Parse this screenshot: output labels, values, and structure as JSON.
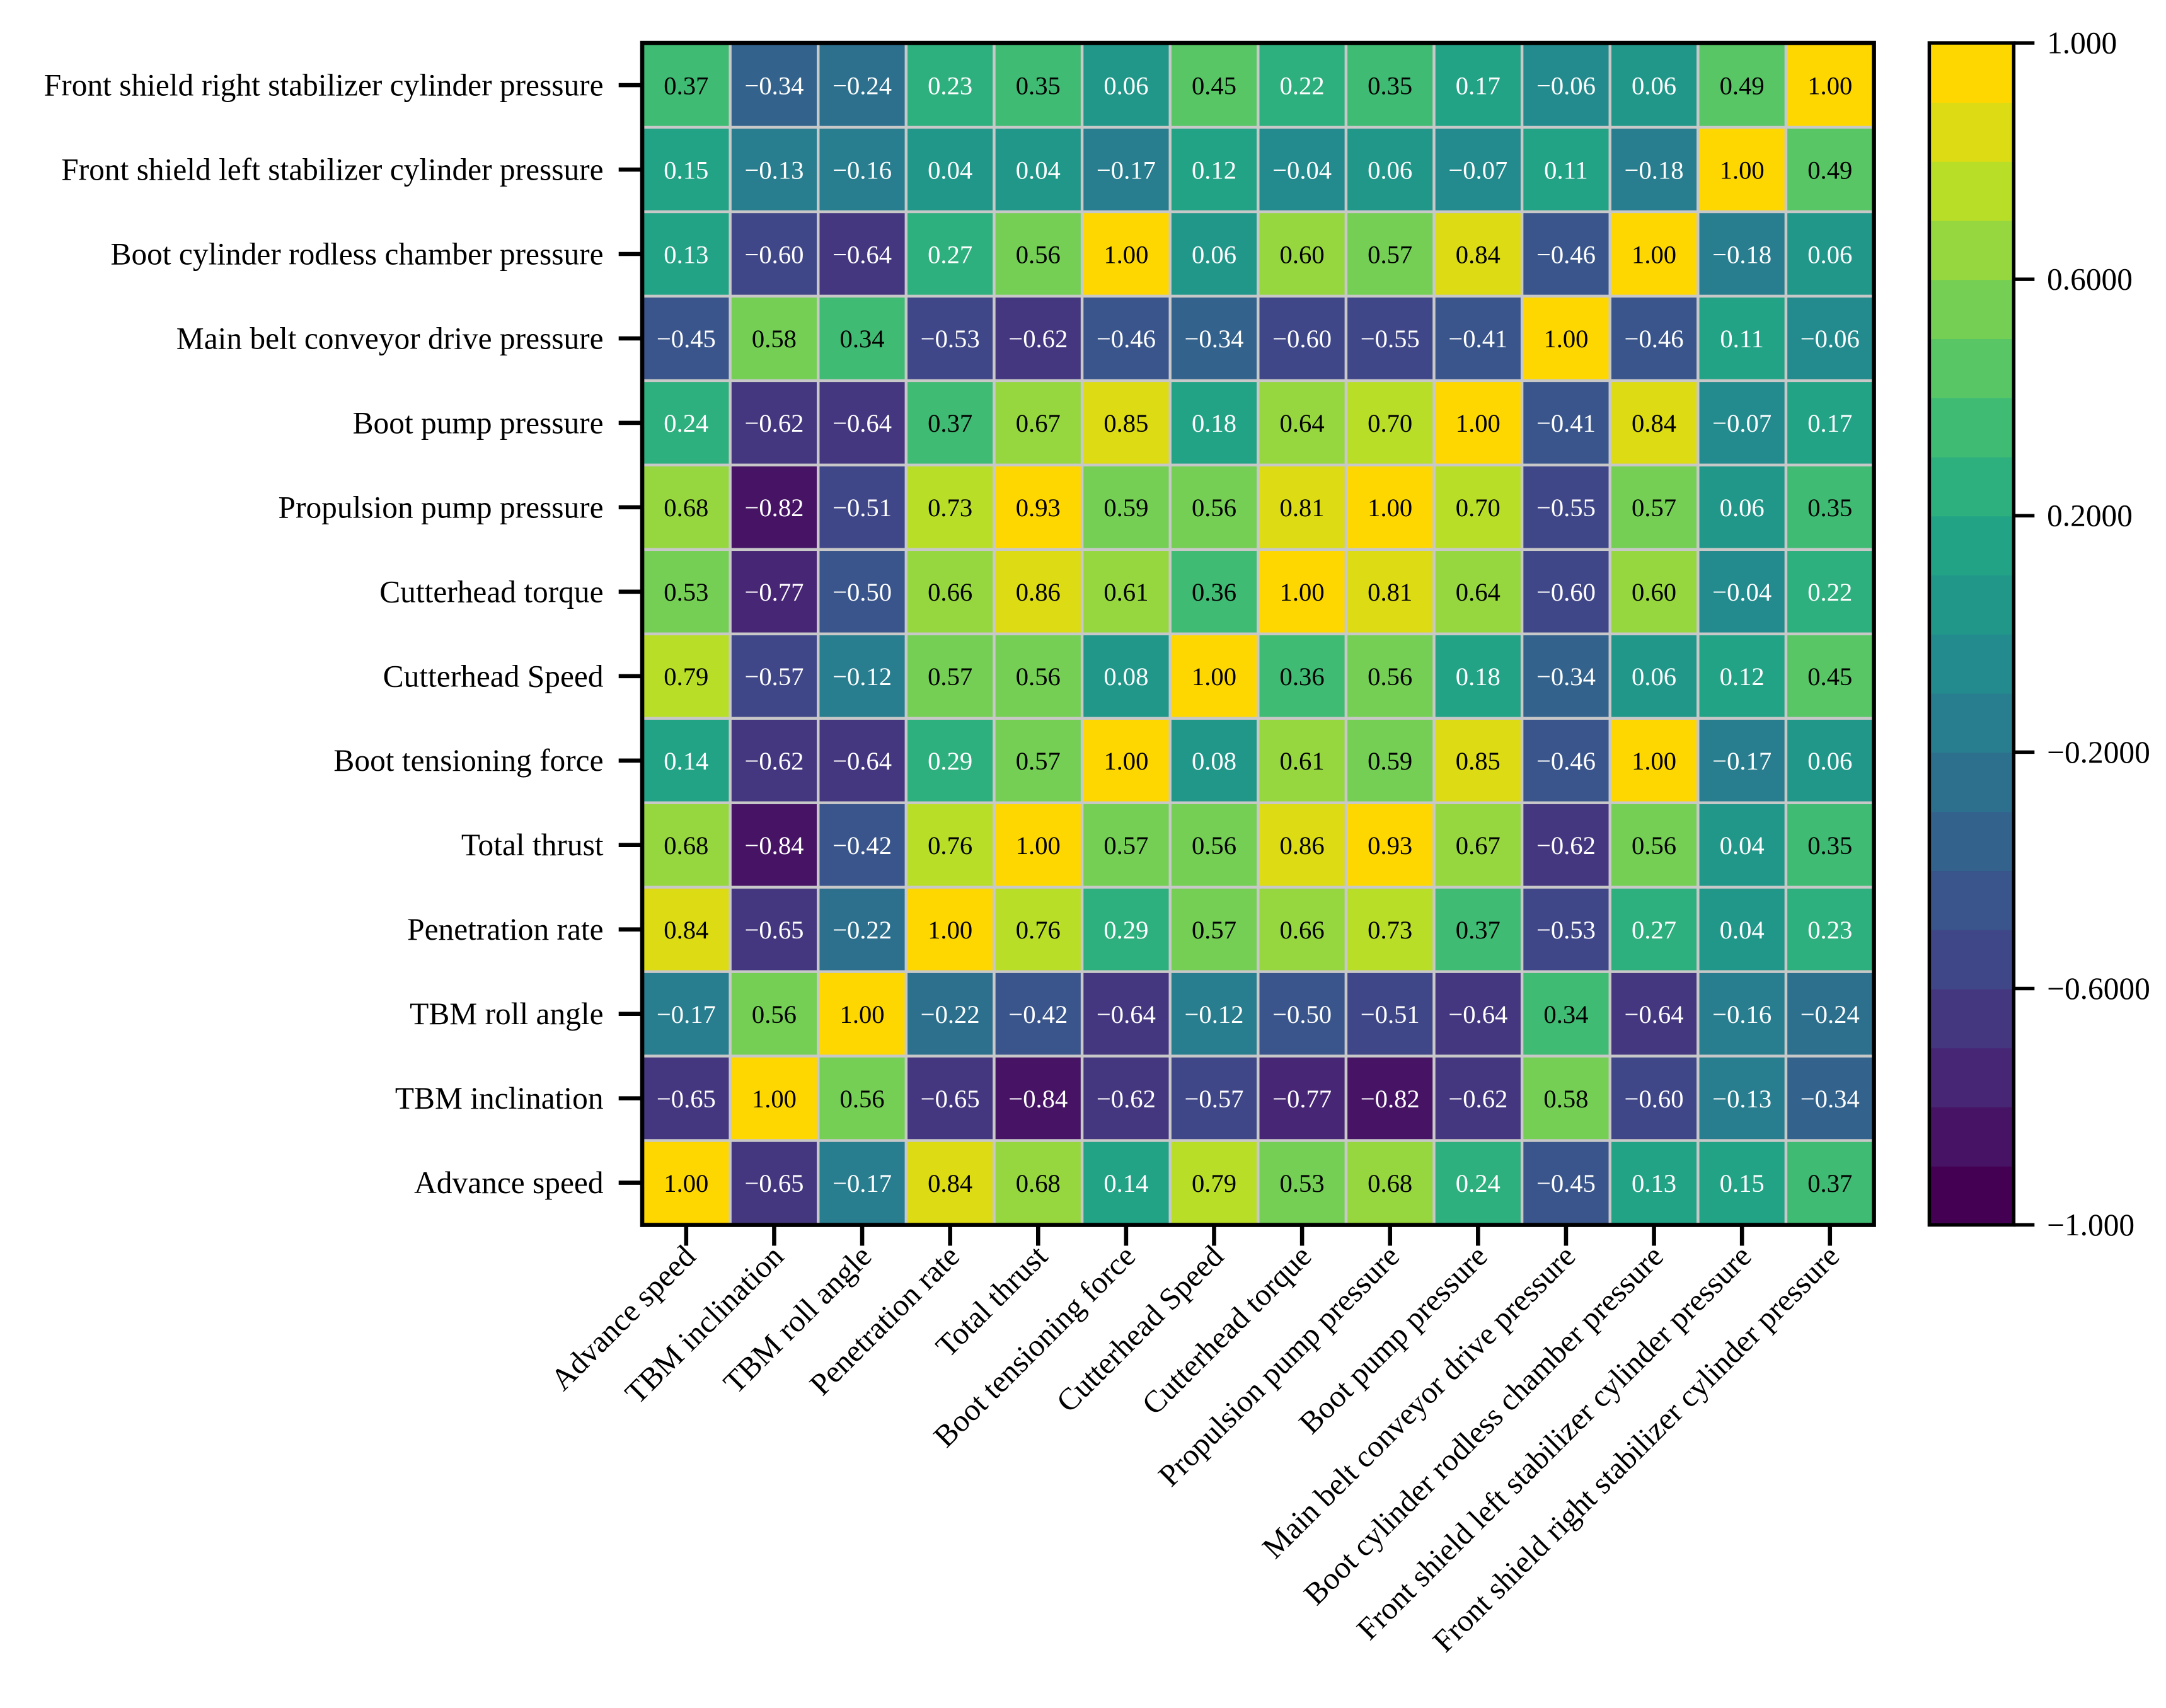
{
  "chart_data": {
    "type": "heatmap",
    "title": "",
    "xlabel": "",
    "ylabel": "",
    "x_categories": [
      "Advance speed",
      "TBM inclination",
      "TBM roll angle",
      "Penetration rate",
      "Total thrust",
      "Boot tensioning force",
      "Cutterhead Speed",
      "Cutterhead torque",
      "Propulsion pump pressure",
      "Boot pump pressure",
      "Main belt conveyor drive pressure",
      "Boot cylinder rodless chamber pressure",
      "Front shield left stabilizer cylinder pressure",
      "Front shield right stabilizer cylinder pressure"
    ],
    "y_categories_top_to_bottom": [
      "Front shield right stabilizer cylinder pressure",
      "Front shield left stabilizer cylinder pressure",
      "Boot cylinder rodless chamber pressure",
      "Main belt conveyor drive pressure",
      "Boot pump pressure",
      "Propulsion pump pressure",
      "Cutterhead torque",
      "Cutterhead Speed",
      "Boot tensioning force",
      "Total thrust",
      "Penetration rate",
      "TBM roll angle",
      "TBM inclination",
      "Advance speed"
    ],
    "values": [
      [
        0.37,
        -0.34,
        -0.24,
        0.23,
        0.35,
        0.06,
        0.45,
        0.22,
        0.35,
        0.17,
        -0.06,
        0.06,
        0.49,
        1.0
      ],
      [
        0.15,
        -0.13,
        -0.16,
        0.04,
        0.04,
        -0.17,
        0.12,
        -0.04,
        0.06,
        -0.07,
        0.11,
        -0.18,
        1.0,
        0.49
      ],
      [
        0.13,
        -0.6,
        -0.64,
        0.27,
        0.56,
        1.0,
        0.06,
        0.6,
        0.57,
        0.84,
        -0.46,
        1.0,
        -0.18,
        0.06
      ],
      [
        -0.45,
        0.58,
        0.34,
        -0.53,
        -0.62,
        -0.46,
        -0.34,
        -0.6,
        -0.55,
        -0.41,
        1.0,
        -0.46,
        0.11,
        -0.06
      ],
      [
        0.24,
        -0.62,
        -0.64,
        0.37,
        0.67,
        0.85,
        0.18,
        0.64,
        0.7,
        1.0,
        -0.41,
        0.84,
        -0.07,
        0.17
      ],
      [
        0.68,
        -0.82,
        -0.51,
        0.73,
        0.93,
        0.59,
        0.56,
        0.81,
        1.0,
        0.7,
        -0.55,
        0.57,
        0.06,
        0.35
      ],
      [
        0.53,
        -0.77,
        -0.5,
        0.66,
        0.86,
        0.61,
        0.36,
        1.0,
        0.81,
        0.64,
        -0.6,
        0.6,
        -0.04,
        0.22
      ],
      [
        0.79,
        -0.57,
        -0.12,
        0.57,
        0.56,
        0.08,
        1.0,
        0.36,
        0.56,
        0.18,
        -0.34,
        0.06,
        0.12,
        0.45
      ],
      [
        0.14,
        -0.62,
        -0.64,
        0.29,
        0.57,
        1.0,
        0.08,
        0.61,
        0.59,
        0.85,
        -0.46,
        1.0,
        -0.17,
        0.06
      ],
      [
        0.68,
        -0.84,
        -0.42,
        0.76,
        1.0,
        0.57,
        0.56,
        0.86,
        0.93,
        0.67,
        -0.62,
        0.56,
        0.04,
        0.35
      ],
      [
        0.84,
        -0.65,
        -0.22,
        1.0,
        0.76,
        0.29,
        0.57,
        0.66,
        0.73,
        0.37,
        -0.53,
        0.27,
        0.04,
        0.23
      ],
      [
        -0.17,
        0.56,
        1.0,
        -0.22,
        -0.42,
        -0.64,
        -0.12,
        -0.5,
        -0.51,
        -0.64,
        0.34,
        -0.64,
        -0.16,
        -0.24
      ],
      [
        -0.65,
        1.0,
        0.56,
        -0.65,
        -0.84,
        -0.62,
        -0.57,
        -0.77,
        -0.82,
        -0.62,
        0.58,
        -0.6,
        -0.13,
        -0.34
      ],
      [
        1.0,
        -0.65,
        -0.17,
        0.84,
        0.68,
        0.14,
        0.79,
        0.53,
        0.68,
        0.24,
        -0.45,
        0.13,
        0.15,
        0.37
      ]
    ],
    "value_format": "2 decimals",
    "colorbar": {
      "range": [
        -1.0,
        1.0
      ],
      "ticks": [
        1.0,
        0.6,
        0.2,
        -0.2,
        -0.6,
        -1.0
      ],
      "tick_labels": [
        "1.000",
        "0.6000",
        "0.2000",
        "−0.2000",
        "−0.6000",
        "−1.000"
      ],
      "colormap": "viridis",
      "levels": 20,
      "placement": "right"
    },
    "grid": true
  }
}
